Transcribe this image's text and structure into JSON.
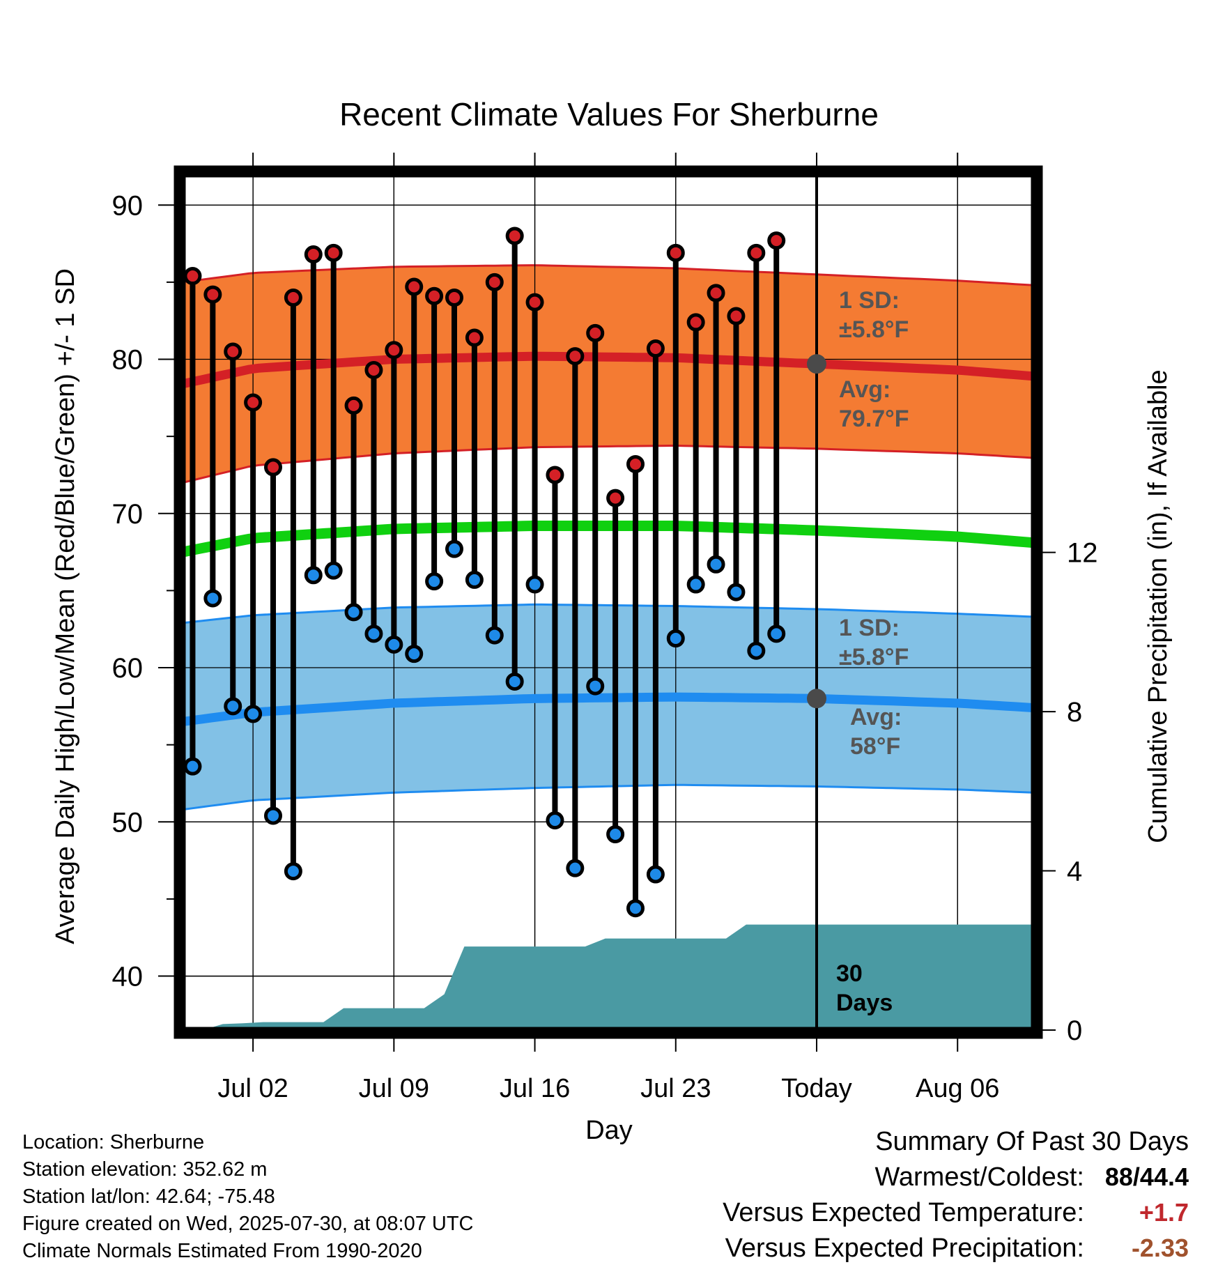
{
  "chart_data": {
    "type": "line",
    "title": "Recent Climate Values For Sherburne",
    "xlabel": "Day",
    "ylabel": "Average Daily High/Low/Mean (Red/Blue/Green) +/- 1 SD",
    "y2label": "Cumulative Precipitation (in), If Available",
    "ylim": [
      36.5,
      92
    ],
    "y2lim": [
      0,
      21.5
    ],
    "yticks": [
      40,
      50,
      60,
      70,
      80,
      90
    ],
    "y2ticks": [
      0,
      4,
      8,
      12
    ],
    "y2tick_labels": [
      "0",
      "4",
      "8",
      "12"
    ],
    "xticks": [
      {
        "day": 2,
        "label": "Jul 02"
      },
      {
        "day": 9,
        "label": "Jul 09"
      },
      {
        "day": 16,
        "label": "Jul 16"
      },
      {
        "day": 23,
        "label": "Jul 23"
      },
      {
        "day": 30,
        "label": "Today"
      },
      {
        "day": 37,
        "label": "Aug 06"
      }
    ],
    "xlim": [
      -1.5,
      40.8
    ],
    "today_day": 30,
    "grid": true,
    "observed": [
      {
        "day": -1,
        "high": 85.4,
        "low": 53.6
      },
      {
        "day": 0,
        "high": 84.2,
        "low": 64.5
      },
      {
        "day": 1,
        "high": 80.5,
        "low": 57.5
      },
      {
        "day": 2,
        "high": 77.2,
        "low": 57.0
      },
      {
        "day": 3,
        "high": 73.0,
        "low": 50.4
      },
      {
        "day": 4,
        "high": 84.0,
        "low": 46.8
      },
      {
        "day": 5,
        "high": 86.8,
        "low": 66.0
      },
      {
        "day": 6,
        "high": 86.9,
        "low": 66.3
      },
      {
        "day": 7,
        "high": 77.0,
        "low": 63.6
      },
      {
        "day": 8,
        "high": 79.3,
        "low": 62.2
      },
      {
        "day": 9,
        "high": 80.6,
        "low": 61.5
      },
      {
        "day": 10,
        "high": 84.7,
        "low": 60.9
      },
      {
        "day": 11,
        "high": 84.1,
        "low": 65.6
      },
      {
        "day": 12,
        "high": 84.0,
        "low": 67.7
      },
      {
        "day": 13,
        "high": 81.4,
        "low": 65.7
      },
      {
        "day": 14,
        "high": 85.0,
        "low": 62.1
      },
      {
        "day": 15,
        "high": 88.0,
        "low": 59.1
      },
      {
        "day": 16,
        "high": 83.7,
        "low": 65.4
      },
      {
        "day": 17,
        "high": 72.5,
        "low": 50.1
      },
      {
        "day": 18,
        "high": 80.2,
        "low": 47.0
      },
      {
        "day": 19,
        "high": 81.7,
        "low": 58.8
      },
      {
        "day": 20,
        "high": 71.0,
        "low": 49.2
      },
      {
        "day": 21,
        "high": 73.2,
        "low": 44.4
      },
      {
        "day": 22,
        "high": 80.7,
        "low": 46.6
      },
      {
        "day": 23,
        "high": 86.9,
        "low": 61.9
      },
      {
        "day": 24,
        "high": 82.4,
        "low": 65.4
      },
      {
        "day": 25,
        "high": 84.3,
        "low": 66.7
      },
      {
        "day": 26,
        "high": 82.8,
        "low": 64.9
      },
      {
        "day": 27,
        "high": 86.9,
        "low": 61.1
      },
      {
        "day": 28,
        "high": 87.7,
        "low": 62.2
      }
    ],
    "normal_days": [
      -1.5,
      2,
      9,
      16,
      23,
      30,
      37,
      40.8
    ],
    "normal_high": [
      78.4,
      79.4,
      80.0,
      80.2,
      80.1,
      79.7,
      79.3,
      78.9
    ],
    "normal_high_upper": [
      85.0,
      85.6,
      86.0,
      86.1,
      85.9,
      85.5,
      85.1,
      84.8
    ],
    "normal_high_lower": [
      72.0,
      73.1,
      73.9,
      74.3,
      74.4,
      74.2,
      73.9,
      73.6
    ],
    "normal_mean": [
      67.5,
      68.4,
      69.0,
      69.2,
      69.2,
      68.9,
      68.5,
      68.1
    ],
    "normal_low": [
      56.5,
      57.1,
      57.7,
      58.0,
      58.1,
      58.0,
      57.7,
      57.4
    ],
    "normal_low_upper": [
      62.9,
      63.4,
      63.9,
      64.1,
      64.0,
      63.8,
      63.5,
      63.3
    ],
    "normal_low_lower": [
      50.8,
      51.4,
      51.9,
      52.2,
      52.4,
      52.3,
      52.1,
      51.9
    ],
    "precip": [
      {
        "day": -1.5,
        "value": 0.0
      },
      {
        "day": -0.5,
        "value": 0.0
      },
      {
        "day": 0.5,
        "value": 0.15
      },
      {
        "day": 1.5,
        "value": 0.17
      },
      {
        "day": 2.5,
        "value": 0.2
      },
      {
        "day": 5.5,
        "value": 0.2
      },
      {
        "day": 6.5,
        "value": 0.55
      },
      {
        "day": 10.5,
        "value": 0.55
      },
      {
        "day": 11.5,
        "value": 0.9
      },
      {
        "day": 12.5,
        "value": 2.1
      },
      {
        "day": 18.5,
        "value": 2.1
      },
      {
        "day": 19.5,
        "value": 2.3
      },
      {
        "day": 25.5,
        "value": 2.3
      },
      {
        "day": 26.5,
        "value": 2.65
      },
      {
        "day": 40.8,
        "value": 2.65
      }
    ],
    "colors": {
      "high_band": "#f47b33",
      "high_line": "#d42026",
      "low_band": "#82c1e6",
      "low_line": "#1f8cf0",
      "mean_line": "#10d010",
      "precip_fill": "#4a9aa3",
      "high_marker": "#d42026",
      "low_marker": "#1e8ae8",
      "annotation": "#555555"
    },
    "annotations": {
      "high_sd_title": "1 SD:",
      "high_sd_value": "±5.8°F",
      "high_avg_title": "Avg:",
      "high_avg_value": "79.7°F",
      "low_sd_title": "1 SD:",
      "low_sd_value": "±5.8°F",
      "low_avg_title": "Avg:",
      "low_avg_value": "58°F",
      "days_line1": "30",
      "days_line2": "Days"
    }
  },
  "location_info": {
    "location": "Location: Sherburne",
    "elevation": "Station elevation: 352.62 m",
    "latlon": "Station lat/lon: 42.64; -75.48",
    "created": "Figure created on Wed, 2025-07-30, at 08:07 UTC",
    "normals": "Climate Normals Estimated From 1990-2020"
  },
  "summary": {
    "heading": "Summary Of Past 30 Days",
    "warmest_label": "Warmest/Coldest:",
    "warmest_value": "88/44.4",
    "temp_label": "Versus Expected Temperature:",
    "temp_value": "+1.7",
    "prcp_label": "Versus Expected Precipitation:",
    "prcp_value": "-2.33"
  }
}
